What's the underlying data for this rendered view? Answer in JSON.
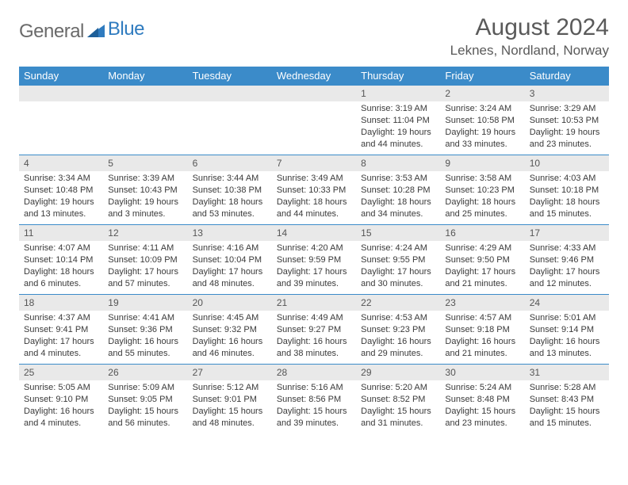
{
  "brand": {
    "part1": "General",
    "part2": "Blue"
  },
  "title": "August 2024",
  "location": "Leknes, Nordland, Norway",
  "colors": {
    "header_bg": "#3b8bc9",
    "header_text": "#ffffff",
    "daynum_bg": "#e9e9e9",
    "border": "#3b8bc9",
    "body_text": "#3a3a3a",
    "title_text": "#5a5a5a",
    "logo_gray": "#6a6a6a",
    "logo_blue": "#2f7bbf",
    "background": "#ffffff"
  },
  "fonts": {
    "family": "Arial",
    "title_size_pt": 22,
    "location_size_pt": 13,
    "weekday_size_pt": 10,
    "daynum_size_pt": 9,
    "body_size_pt": 8
  },
  "layout": {
    "columns": 7,
    "rows": 5,
    "first_day_column_index": 4
  },
  "weekdays": [
    "Sunday",
    "Monday",
    "Tuesday",
    "Wednesday",
    "Thursday",
    "Friday",
    "Saturday"
  ],
  "days": [
    {
      "n": "1",
      "sunrise": "Sunrise: 3:19 AM",
      "sunset": "Sunset: 11:04 PM",
      "daylight1": "Daylight: 19 hours",
      "daylight2": "and 44 minutes."
    },
    {
      "n": "2",
      "sunrise": "Sunrise: 3:24 AM",
      "sunset": "Sunset: 10:58 PM",
      "daylight1": "Daylight: 19 hours",
      "daylight2": "and 33 minutes."
    },
    {
      "n": "3",
      "sunrise": "Sunrise: 3:29 AM",
      "sunset": "Sunset: 10:53 PM",
      "daylight1": "Daylight: 19 hours",
      "daylight2": "and 23 minutes."
    },
    {
      "n": "4",
      "sunrise": "Sunrise: 3:34 AM",
      "sunset": "Sunset: 10:48 PM",
      "daylight1": "Daylight: 19 hours",
      "daylight2": "and 13 minutes."
    },
    {
      "n": "5",
      "sunrise": "Sunrise: 3:39 AM",
      "sunset": "Sunset: 10:43 PM",
      "daylight1": "Daylight: 19 hours",
      "daylight2": "and 3 minutes."
    },
    {
      "n": "6",
      "sunrise": "Sunrise: 3:44 AM",
      "sunset": "Sunset: 10:38 PM",
      "daylight1": "Daylight: 18 hours",
      "daylight2": "and 53 minutes."
    },
    {
      "n": "7",
      "sunrise": "Sunrise: 3:49 AM",
      "sunset": "Sunset: 10:33 PM",
      "daylight1": "Daylight: 18 hours",
      "daylight2": "and 44 minutes."
    },
    {
      "n": "8",
      "sunrise": "Sunrise: 3:53 AM",
      "sunset": "Sunset: 10:28 PM",
      "daylight1": "Daylight: 18 hours",
      "daylight2": "and 34 minutes."
    },
    {
      "n": "9",
      "sunrise": "Sunrise: 3:58 AM",
      "sunset": "Sunset: 10:23 PM",
      "daylight1": "Daylight: 18 hours",
      "daylight2": "and 25 minutes."
    },
    {
      "n": "10",
      "sunrise": "Sunrise: 4:03 AM",
      "sunset": "Sunset: 10:18 PM",
      "daylight1": "Daylight: 18 hours",
      "daylight2": "and 15 minutes."
    },
    {
      "n": "11",
      "sunrise": "Sunrise: 4:07 AM",
      "sunset": "Sunset: 10:14 PM",
      "daylight1": "Daylight: 18 hours",
      "daylight2": "and 6 minutes."
    },
    {
      "n": "12",
      "sunrise": "Sunrise: 4:11 AM",
      "sunset": "Sunset: 10:09 PM",
      "daylight1": "Daylight: 17 hours",
      "daylight2": "and 57 minutes."
    },
    {
      "n": "13",
      "sunrise": "Sunrise: 4:16 AM",
      "sunset": "Sunset: 10:04 PM",
      "daylight1": "Daylight: 17 hours",
      "daylight2": "and 48 minutes."
    },
    {
      "n": "14",
      "sunrise": "Sunrise: 4:20 AM",
      "sunset": "Sunset: 9:59 PM",
      "daylight1": "Daylight: 17 hours",
      "daylight2": "and 39 minutes."
    },
    {
      "n": "15",
      "sunrise": "Sunrise: 4:24 AM",
      "sunset": "Sunset: 9:55 PM",
      "daylight1": "Daylight: 17 hours",
      "daylight2": "and 30 minutes."
    },
    {
      "n": "16",
      "sunrise": "Sunrise: 4:29 AM",
      "sunset": "Sunset: 9:50 PM",
      "daylight1": "Daylight: 17 hours",
      "daylight2": "and 21 minutes."
    },
    {
      "n": "17",
      "sunrise": "Sunrise: 4:33 AM",
      "sunset": "Sunset: 9:46 PM",
      "daylight1": "Daylight: 17 hours",
      "daylight2": "and 12 minutes."
    },
    {
      "n": "18",
      "sunrise": "Sunrise: 4:37 AM",
      "sunset": "Sunset: 9:41 PM",
      "daylight1": "Daylight: 17 hours",
      "daylight2": "and 4 minutes."
    },
    {
      "n": "19",
      "sunrise": "Sunrise: 4:41 AM",
      "sunset": "Sunset: 9:36 PM",
      "daylight1": "Daylight: 16 hours",
      "daylight2": "and 55 minutes."
    },
    {
      "n": "20",
      "sunrise": "Sunrise: 4:45 AM",
      "sunset": "Sunset: 9:32 PM",
      "daylight1": "Daylight: 16 hours",
      "daylight2": "and 46 minutes."
    },
    {
      "n": "21",
      "sunrise": "Sunrise: 4:49 AM",
      "sunset": "Sunset: 9:27 PM",
      "daylight1": "Daylight: 16 hours",
      "daylight2": "and 38 minutes."
    },
    {
      "n": "22",
      "sunrise": "Sunrise: 4:53 AM",
      "sunset": "Sunset: 9:23 PM",
      "daylight1": "Daylight: 16 hours",
      "daylight2": "and 29 minutes."
    },
    {
      "n": "23",
      "sunrise": "Sunrise: 4:57 AM",
      "sunset": "Sunset: 9:18 PM",
      "daylight1": "Daylight: 16 hours",
      "daylight2": "and 21 minutes."
    },
    {
      "n": "24",
      "sunrise": "Sunrise: 5:01 AM",
      "sunset": "Sunset: 9:14 PM",
      "daylight1": "Daylight: 16 hours",
      "daylight2": "and 13 minutes."
    },
    {
      "n": "25",
      "sunrise": "Sunrise: 5:05 AM",
      "sunset": "Sunset: 9:10 PM",
      "daylight1": "Daylight: 16 hours",
      "daylight2": "and 4 minutes."
    },
    {
      "n": "26",
      "sunrise": "Sunrise: 5:09 AM",
      "sunset": "Sunset: 9:05 PM",
      "daylight1": "Daylight: 15 hours",
      "daylight2": "and 56 minutes."
    },
    {
      "n": "27",
      "sunrise": "Sunrise: 5:12 AM",
      "sunset": "Sunset: 9:01 PM",
      "daylight1": "Daylight: 15 hours",
      "daylight2": "and 48 minutes."
    },
    {
      "n": "28",
      "sunrise": "Sunrise: 5:16 AM",
      "sunset": "Sunset: 8:56 PM",
      "daylight1": "Daylight: 15 hours",
      "daylight2": "and 39 minutes."
    },
    {
      "n": "29",
      "sunrise": "Sunrise: 5:20 AM",
      "sunset": "Sunset: 8:52 PM",
      "daylight1": "Daylight: 15 hours",
      "daylight2": "and 31 minutes."
    },
    {
      "n": "30",
      "sunrise": "Sunrise: 5:24 AM",
      "sunset": "Sunset: 8:48 PM",
      "daylight1": "Daylight: 15 hours",
      "daylight2": "and 23 minutes."
    },
    {
      "n": "31",
      "sunrise": "Sunrise: 5:28 AM",
      "sunset": "Sunset: 8:43 PM",
      "daylight1": "Daylight: 15 hours",
      "daylight2": "and 15 minutes."
    }
  ]
}
